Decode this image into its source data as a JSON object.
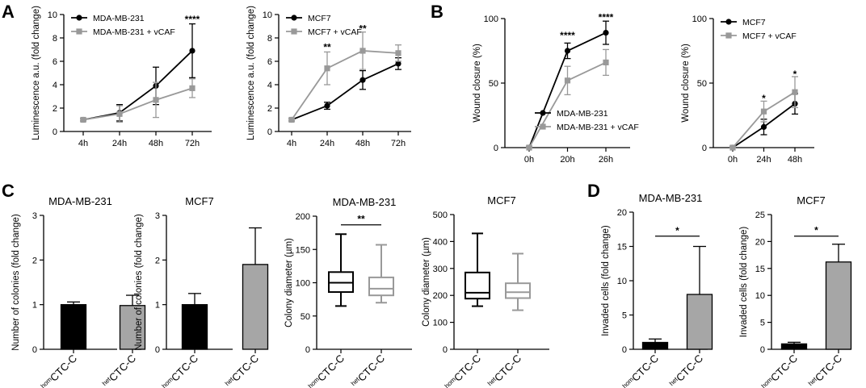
{
  "panel_letters": [
    "A",
    "B",
    "C",
    "D"
  ],
  "colors": {
    "primary": "#000000",
    "vcaf": "#999999",
    "het_fill": "#a6a6a6",
    "axis": "#000000"
  },
  "chart_data": [
    {
      "id": "A1",
      "panel": "A",
      "type": "line",
      "title": "",
      "xlabel": "",
      "ylabel": "Luminescence a.u. (fold change)",
      "categories": [
        "4h",
        "24h",
        "48h",
        "72h"
      ],
      "ylim": [
        0,
        10
      ],
      "yticks": [
        0,
        2,
        4,
        6,
        8,
        10
      ],
      "legend": "top-left",
      "series": [
        {
          "name": "MDA-MB-231",
          "color": "#000000",
          "marker": "circle",
          "values": [
            1.0,
            1.6,
            3.9,
            6.9
          ],
          "err": [
            0.1,
            0.7,
            1.6,
            2.3
          ]
        },
        {
          "name": "MDA-MB-231 + vCAF",
          "color": "#999999",
          "marker": "square",
          "values": [
            1.0,
            1.5,
            2.7,
            3.7
          ],
          "err": [
            0.1,
            0.7,
            1.5,
            0.8
          ]
        }
      ],
      "annotations": [
        {
          "category": "72h",
          "text": "****",
          "y": 9.6
        }
      ]
    },
    {
      "id": "A2",
      "panel": "A",
      "type": "line",
      "title": "",
      "xlabel": "",
      "ylabel": "Luminescence a.u. (fold change)",
      "categories": [
        "4h",
        "24h",
        "48h",
        "72h"
      ],
      "ylim": [
        0,
        10
      ],
      "yticks": [
        0,
        2,
        4,
        6,
        8,
        10
      ],
      "legend": "top-left",
      "series": [
        {
          "name": "MCF7",
          "color": "#000000",
          "marker": "circle",
          "values": [
            1.0,
            2.2,
            4.4,
            5.8
          ],
          "err": [
            0.1,
            0.3,
            0.8,
            0.5
          ]
        },
        {
          "name": "MCF7 + vCAF",
          "color": "#999999",
          "marker": "square",
          "values": [
            1.0,
            5.4,
            6.9,
            6.7
          ],
          "err": [
            0.1,
            1.4,
            1.6,
            0.7
          ]
        }
      ],
      "annotations": [
        {
          "category": "24h",
          "text": "**",
          "y": 7.2
        },
        {
          "category": "48h",
          "text": "**",
          "y": 8.8
        }
      ]
    },
    {
      "id": "B1",
      "panel": "B",
      "type": "line",
      "title": "",
      "xlabel": "",
      "ylabel": "Wound closure (%)",
      "categories": [
        "0h",
        "20h",
        "26h"
      ],
      "ylim": [
        0,
        100
      ],
      "yticks": [
        0,
        50,
        100
      ],
      "legend": "bottom-right",
      "series": [
        {
          "name": "MDA-MB-231",
          "color": "#000000",
          "marker": "circle",
          "values": [
            0,
            75,
            89
          ],
          "err": [
            1,
            6,
            9
          ]
        },
        {
          "name": "MDA-MB-231 + vCAF",
          "color": "#999999",
          "marker": "square",
          "values": [
            0,
            52,
            66
          ],
          "err": [
            1,
            11,
            10
          ]
        }
      ],
      "annotations": [
        {
          "category": "20h",
          "text": "****",
          "y": 87
        },
        {
          "category": "26h",
          "text": "****",
          "y": 101
        }
      ]
    },
    {
      "id": "B2",
      "panel": "B",
      "type": "line",
      "title": "",
      "xlabel": "",
      "ylabel": "Wound closure (%)",
      "categories": [
        "0h",
        "24h",
        "48h"
      ],
      "ylim": [
        0,
        100
      ],
      "yticks": [
        0,
        50,
        100
      ],
      "legend": "top-left",
      "series": [
        {
          "name": "MCF7",
          "color": "#000000",
          "marker": "circle",
          "values": [
            0,
            16,
            34
          ],
          "err": [
            1,
            6,
            8
          ]
        },
        {
          "name": "MCF7 + vCAF",
          "color": "#999999",
          "marker": "square",
          "values": [
            0,
            28,
            43
          ],
          "err": [
            1,
            8,
            12
          ]
        }
      ],
      "annotations": [
        {
          "category": "24h",
          "text": "*",
          "y": 38
        },
        {
          "category": "48h",
          "text": "*",
          "y": 57
        }
      ]
    },
    {
      "id": "C1",
      "panel": "C",
      "type": "bar",
      "title": "MDA-MB-231",
      "xlabel": "",
      "ylabel": "Number of colonies (fold change)",
      "categories": [
        {
          "sup": "hom",
          "base": "CTC-C"
        },
        {
          "sup": "het",
          "base": "CTC-C"
        }
      ],
      "values": [
        1.0,
        0.98
      ],
      "err": [
        0.06,
        0.23
      ],
      "fills": [
        "#000000",
        "#a6a6a6"
      ],
      "ylim": [
        0,
        3
      ],
      "yticks": [
        0,
        1,
        2,
        3
      ]
    },
    {
      "id": "C2",
      "panel": "C",
      "type": "bar",
      "title": "MCF7",
      "xlabel": "",
      "ylabel": "Number of colonies (fold change)",
      "categories": [
        {
          "sup": "hom",
          "base": "CTC-C"
        },
        {
          "sup": "het",
          "base": "CTC-C"
        }
      ],
      "values": [
        1.0,
        1.9
      ],
      "err": [
        0.25,
        0.82
      ],
      "fills": [
        "#000000",
        "#a6a6a6"
      ],
      "ylim": [
        0,
        3
      ],
      "yticks": [
        0,
        1,
        2,
        3
      ]
    },
    {
      "id": "C3",
      "panel": "C",
      "type": "box",
      "title": "MDA-MB-231",
      "xlabel": "",
      "ylabel": "Colony diameter (µm)",
      "categories": [
        {
          "sup": "hom",
          "base": "CTC-C"
        },
        {
          "sup": "het",
          "base": "CTC-C"
        }
      ],
      "boxes": [
        {
          "min": 65,
          "q1": 86,
          "median": 100,
          "q3": 116,
          "max": 173,
          "color": "#000000"
        },
        {
          "min": 70,
          "q1": 81,
          "median": 91,
          "q3": 108,
          "max": 157,
          "color": "#999999"
        }
      ],
      "ylim": [
        0,
        200
      ],
      "yticks": [
        0,
        50,
        100,
        150,
        200
      ],
      "annotations": [
        {
          "text": "**",
          "y": 187
        }
      ]
    },
    {
      "id": "C4",
      "panel": "C",
      "type": "box",
      "title": "MCF7",
      "xlabel": "",
      "ylabel": "Colony diameter (µm)",
      "categories": [
        {
          "sup": "hom",
          "base": "CTC-C"
        },
        {
          "sup": "het",
          "base": "CTC-C"
        }
      ],
      "boxes": [
        {
          "min": 160,
          "q1": 188,
          "median": 210,
          "q3": 285,
          "max": 430,
          "color": "#000000"
        },
        {
          "min": 145,
          "q1": 190,
          "median": 212,
          "q3": 245,
          "max": 355,
          "color": "#999999"
        }
      ],
      "ylim": [
        0,
        500
      ],
      "yticks": [
        0,
        100,
        200,
        300,
        400,
        500
      ]
    },
    {
      "id": "D1",
      "panel": "D",
      "type": "bar",
      "title": "MDA-MB-231",
      "xlabel": "",
      "ylabel": "Invaded cells (fold change)",
      "categories": [
        {
          "sup": "hom",
          "base": "CTC-C"
        },
        {
          "sup": "het",
          "base": "CTC-C"
        }
      ],
      "values": [
        1.0,
        8.0
      ],
      "err": [
        0.5,
        7.0
      ],
      "fills": [
        "#000000",
        "#a6a6a6"
      ],
      "ylim": [
        0,
        20
      ],
      "yticks": [
        0,
        5,
        10,
        15,
        20
      ],
      "annotations": [
        {
          "text": "*",
          "y": 16.5
        }
      ]
    },
    {
      "id": "D2",
      "panel": "D",
      "type": "bar",
      "title": "MCF7",
      "xlabel": "",
      "ylabel": "Invaded cells (fold change)",
      "categories": [
        {
          "sup": "hom",
          "base": "CTC-C"
        },
        {
          "sup": "het",
          "base": "CTC-C"
        }
      ],
      "values": [
        1.0,
        16.2
      ],
      "err": [
        0.3,
        3.3
      ],
      "fills": [
        "#000000",
        "#a6a6a6"
      ],
      "ylim": [
        0,
        25
      ],
      "yticks": [
        0,
        5,
        10,
        15,
        20,
        25
      ],
      "annotations": [
        {
          "text": "*",
          "y": 21
        }
      ]
    }
  ]
}
